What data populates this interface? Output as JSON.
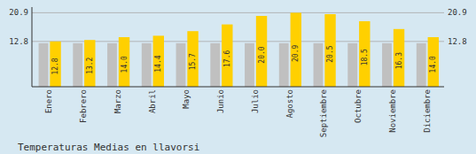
{
  "chart_data": {
    "type": "bar",
    "title": "Temperaturas Medias en llavorsi",
    "categories": [
      "Enero",
      "Febrero",
      "Marzo",
      "Abril",
      "Mayo",
      "Junio",
      "Julio",
      "Agosto",
      "Septiembre",
      "Octubre",
      "Noviembre",
      "Diciembre"
    ],
    "series": [
      {
        "color": "#C0C0C0",
        "values": [
          12.3,
          12.3,
          12.3,
          12.3,
          12.3,
          12.3,
          12.3,
          12.3,
          12.3,
          12.3,
          12.3,
          12.3
        ]
      },
      {
        "color": "#FFD000",
        "values": [
          12.8,
          13.2,
          14.0,
          14.4,
          15.7,
          17.6,
          20.0,
          20.9,
          20.5,
          18.5,
          16.3,
          14.0
        ],
        "value_labels": [
          "12.8",
          "13.2",
          "14.0",
          "14.4",
          "15.7",
          "17.6",
          "20.0",
          "20.9",
          "20.5",
          "18.5",
          "16.3",
          "14.0"
        ],
        "data_labels": true
      }
    ],
    "ylim": [
      0,
      22.5
    ],
    "yticks": [
      12.8,
      20.9
    ],
    "grid": true
  }
}
